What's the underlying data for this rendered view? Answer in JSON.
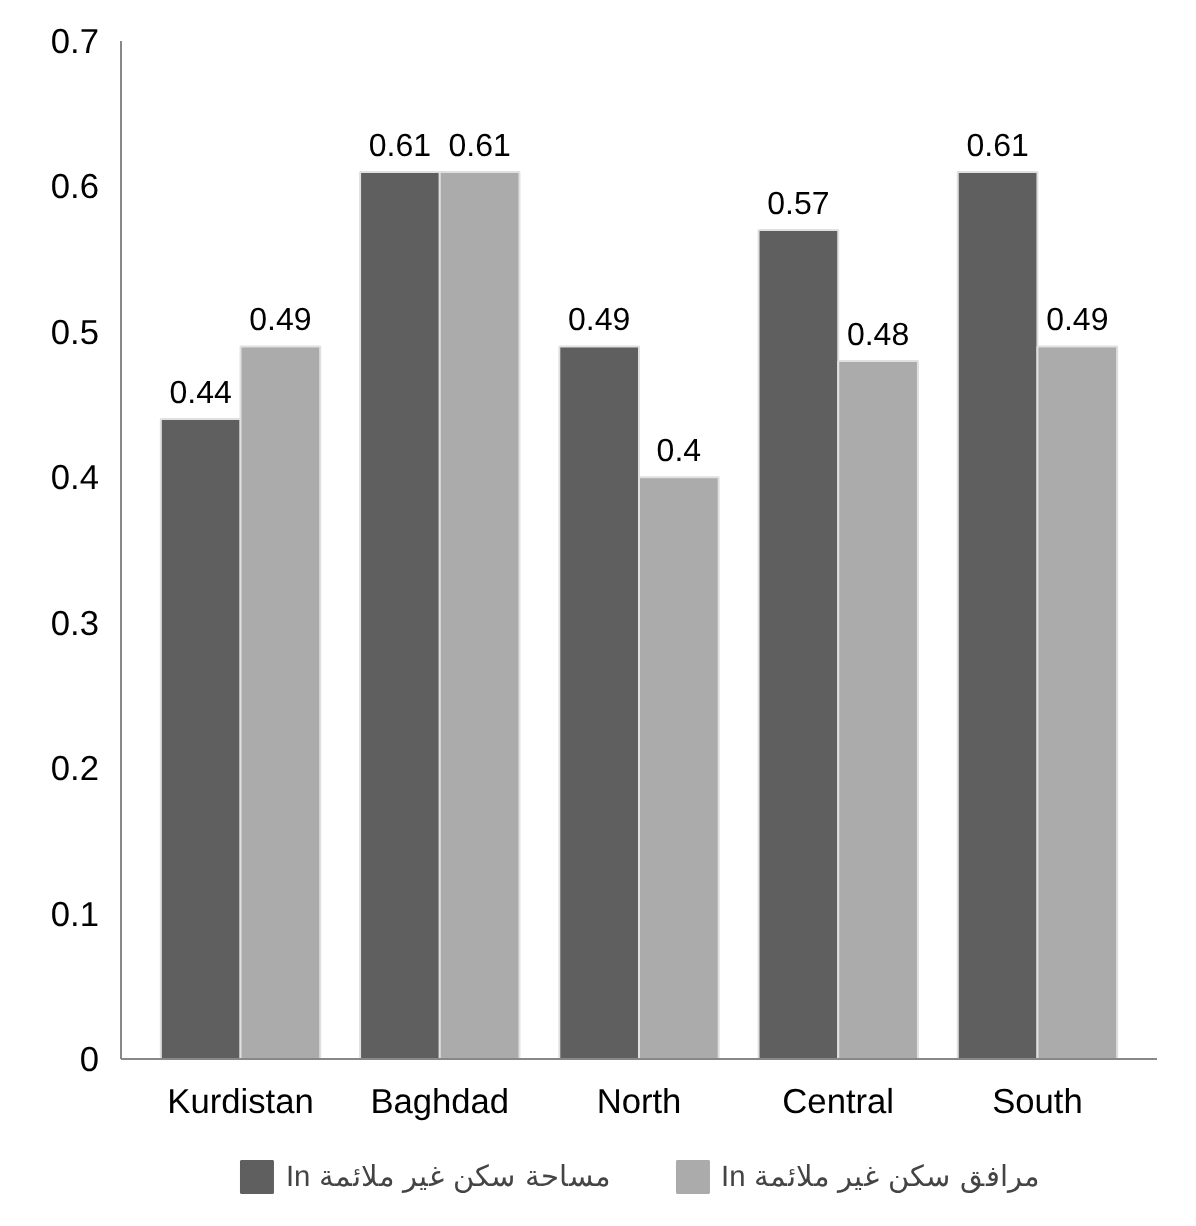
{
  "chart_data": {
    "type": "bar",
    "categories": [
      "Kurdistan",
      "Baghdad",
      "North",
      "Central",
      "South"
    ],
    "series": [
      {
        "name": "In مساحة سكن غير ملائمة",
        "color": "#5f5f5f",
        "values": [
          0.44,
          0.61,
          0.49,
          0.57,
          0.61
        ]
      },
      {
        "name": "In مرافق سكن غير ملائمة",
        "color": "#ababab",
        "values": [
          0.49,
          0.61,
          0.4,
          0.48,
          0.49
        ]
      }
    ],
    "ylim": [
      0,
      0.7
    ],
    "yticks": [
      0,
      0.1,
      0.2,
      0.3,
      0.4,
      0.5,
      0.6,
      0.7
    ],
    "data_labels": true,
    "grid": false,
    "legend": "bottom"
  }
}
